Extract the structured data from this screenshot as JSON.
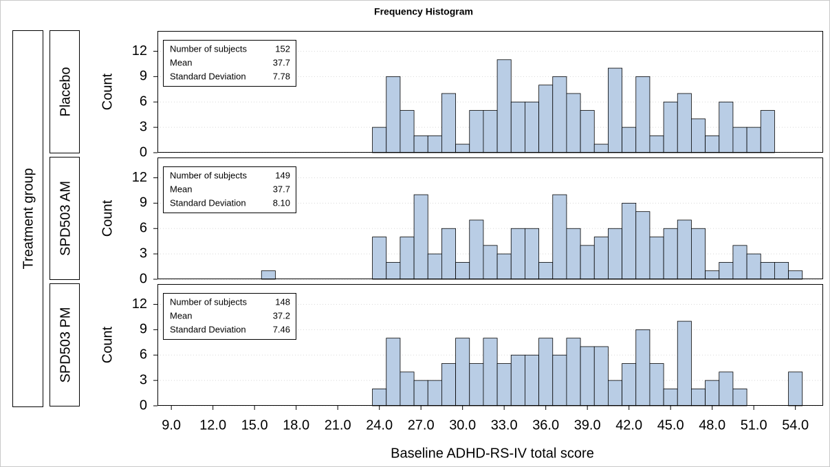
{
  "chart_data": {
    "type": "histogram",
    "title": "Frequency Histogram",
    "xlabel": "Baseline ADHD-RS-IV total score",
    "group_label": "Treatment group",
    "ylabel": "Count",
    "color": "#b9cde5",
    "grid": true,
    "bins": [
      15.5,
      16.5,
      17.5,
      18.5,
      19.5,
      20.5,
      21.5,
      22.5,
      23.5,
      24.5,
      25.5,
      26.5,
      27.5,
      28.5,
      29.5,
      30.5,
      31.5,
      32.5,
      33.5,
      34.5,
      35.5,
      36.5,
      37.5,
      38.5,
      39.5,
      40.5,
      41.5,
      42.5,
      43.5,
      44.5,
      45.5,
      46.5,
      47.5,
      48.5,
      49.5,
      50.5,
      51.5,
      52.5,
      53.5,
      54.5
    ],
    "xlim": [
      8,
      56
    ],
    "xticks": [
      {
        "value": 9,
        "label": "9.0"
      },
      {
        "value": 12,
        "label": "12.0"
      },
      {
        "value": 15,
        "label": "15.0"
      },
      {
        "value": 18,
        "label": "18.0"
      },
      {
        "value": 21,
        "label": "21.0"
      },
      {
        "value": 24,
        "label": "24.0"
      },
      {
        "value": 27,
        "label": "27.0"
      },
      {
        "value": 30,
        "label": "30.0"
      },
      {
        "value": 33,
        "label": "33.0"
      },
      {
        "value": 36,
        "label": "36.0"
      },
      {
        "value": 39,
        "label": "39.0"
      },
      {
        "value": 42,
        "label": "42.0"
      },
      {
        "value": 45,
        "label": "45.0"
      },
      {
        "value": 48,
        "label": "48.0"
      },
      {
        "value": 51,
        "label": "51.0"
      },
      {
        "value": 54,
        "label": "54.0"
      }
    ],
    "ylim": [
      0,
      14.4
    ],
    "yticks": [
      0,
      3,
      6,
      9,
      12
    ],
    "panels": [
      {
        "name": "Placebo",
        "values": [
          0,
          0,
          0,
          0,
          0,
          0,
          0,
          0,
          3,
          9,
          5,
          2,
          2,
          7,
          1,
          5,
          5,
          11,
          6,
          6,
          8,
          9,
          7,
          5,
          1,
          10,
          3,
          9,
          2,
          6,
          7,
          4,
          2,
          6,
          3,
          3,
          5,
          0,
          0
        ],
        "stats": [
          [
            "Number of subjects",
            152
          ],
          [
            "Mean",
            37.7
          ],
          [
            "Standard Deviation",
            7.78
          ]
        ]
      },
      {
        "name": "SPD503 AM",
        "values": [
          1,
          0,
          0,
          0,
          0,
          0,
          0,
          0,
          5,
          2,
          5,
          10,
          3,
          6,
          2,
          7,
          4,
          3,
          6,
          6,
          2,
          10,
          6,
          4,
          5,
          6,
          9,
          8,
          5,
          6,
          7,
          6,
          1,
          2,
          4,
          3,
          2,
          2,
          1
        ],
        "stats": [
          [
            "Number of subjects",
            149
          ],
          [
            "Mean",
            37.7
          ],
          [
            "Standard Deviation",
            {
              "value": 8.1,
              "label": "8.10"
            }
          ]
        ]
      },
      {
        "name": "SPD503 PM",
        "values": [
          0,
          0,
          0,
          0,
          0,
          0,
          0,
          0,
          2,
          8,
          4,
          3,
          3,
          5,
          8,
          5,
          8,
          5,
          6,
          6,
          8,
          6,
          8,
          7,
          7,
          3,
          5,
          9,
          5,
          2,
          10,
          2,
          3,
          4,
          2,
          0,
          0,
          0,
          4
        ],
        "stats": [
          [
            "Number of subjects",
            148
          ],
          [
            "Mean",
            37.2
          ],
          [
            "Standard Deviation",
            7.46
          ]
        ]
      }
    ]
  }
}
